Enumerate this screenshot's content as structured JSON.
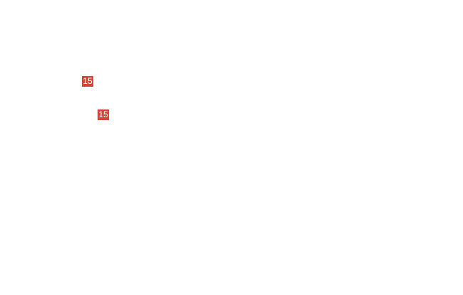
{
  "badges": [
    {
      "label": "15",
      "color": "#d0443a"
    },
    {
      "label": "15",
      "color": "#d0443a"
    }
  ]
}
